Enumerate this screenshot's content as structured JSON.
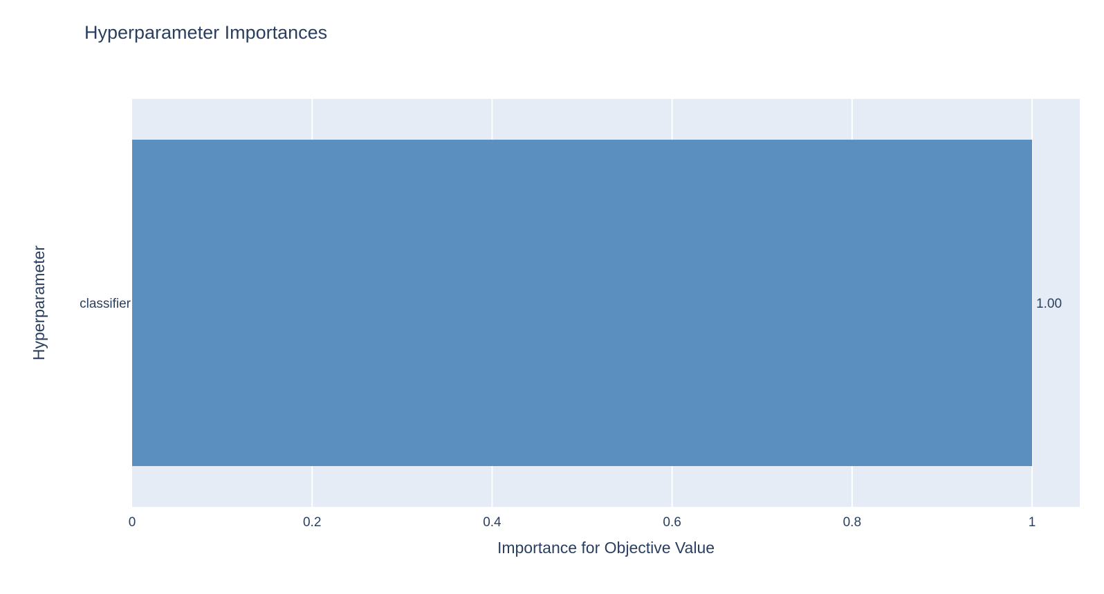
{
  "chart_data": {
    "type": "bar",
    "orientation": "horizontal",
    "title": "Hyperparameter Importances",
    "xlabel": "Importance for Objective Value",
    "ylabel": "Hyperparameter",
    "categories": [
      "classifier"
    ],
    "values": [
      1.0
    ],
    "value_labels": [
      "1.00"
    ],
    "xlim": [
      0,
      1.053
    ],
    "xticks": [
      0,
      0.2,
      0.4,
      0.6,
      0.8,
      1
    ],
    "xtick_labels": [
      "0",
      "0.2",
      "0.4",
      "0.6",
      "0.8",
      "1"
    ],
    "grid": true,
    "legend": "none"
  },
  "colors": {
    "bar": "#5a8fc0",
    "plot_bg": "#e5ecf6",
    "grid": "#ffffff",
    "text": "#2a3f5f",
    "paper_bg": "#ffffff"
  }
}
